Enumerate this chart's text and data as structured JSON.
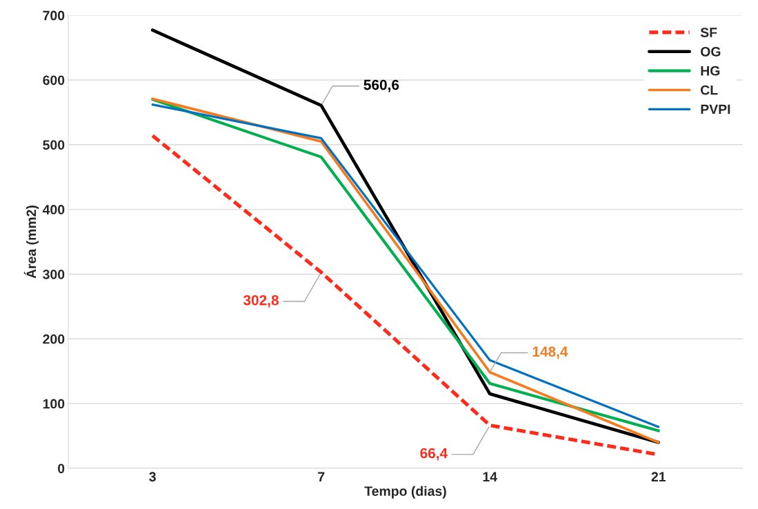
{
  "chart_data": {
    "type": "line",
    "xlabel": "Tempo (dias)",
    "ylabel": "Área (mm2)",
    "categories": [
      "3",
      "7",
      "14",
      "21"
    ],
    "ylim": [
      0,
      700
    ],
    "yticks": [
      0,
      100,
      200,
      300,
      400,
      500,
      600,
      700
    ],
    "grid": "y",
    "legend": "top right",
    "series": [
      {
        "name": "SF",
        "color": "#ff2a1a",
        "line_style": "dashed",
        "values": [
          514,
          302.8,
          66.4,
          21
        ],
        "value_labels": [
          null,
          "302,8",
          "66,4",
          null
        ]
      },
      {
        "name": "OG",
        "color": "#000000",
        "line_style": "solid",
        "values": [
          677,
          560.6,
          115,
          40
        ],
        "value_labels": [
          null,
          "560,6",
          null,
          null
        ]
      },
      {
        "name": "HG",
        "color": "#00b050",
        "line_style": "solid",
        "values": [
          570,
          481,
          131,
          58
        ]
      },
      {
        "name": "CL",
        "color": "#f47b20",
        "line_style": "solid",
        "values": [
          571,
          505,
          148.4,
          40
        ],
        "value_labels": [
          null,
          null,
          "148,4",
          null
        ]
      },
      {
        "name": "PVPI",
        "color": "#0070c0",
        "line_style": "solid",
        "values": [
          562,
          510,
          167,
          64
        ]
      }
    ]
  }
}
